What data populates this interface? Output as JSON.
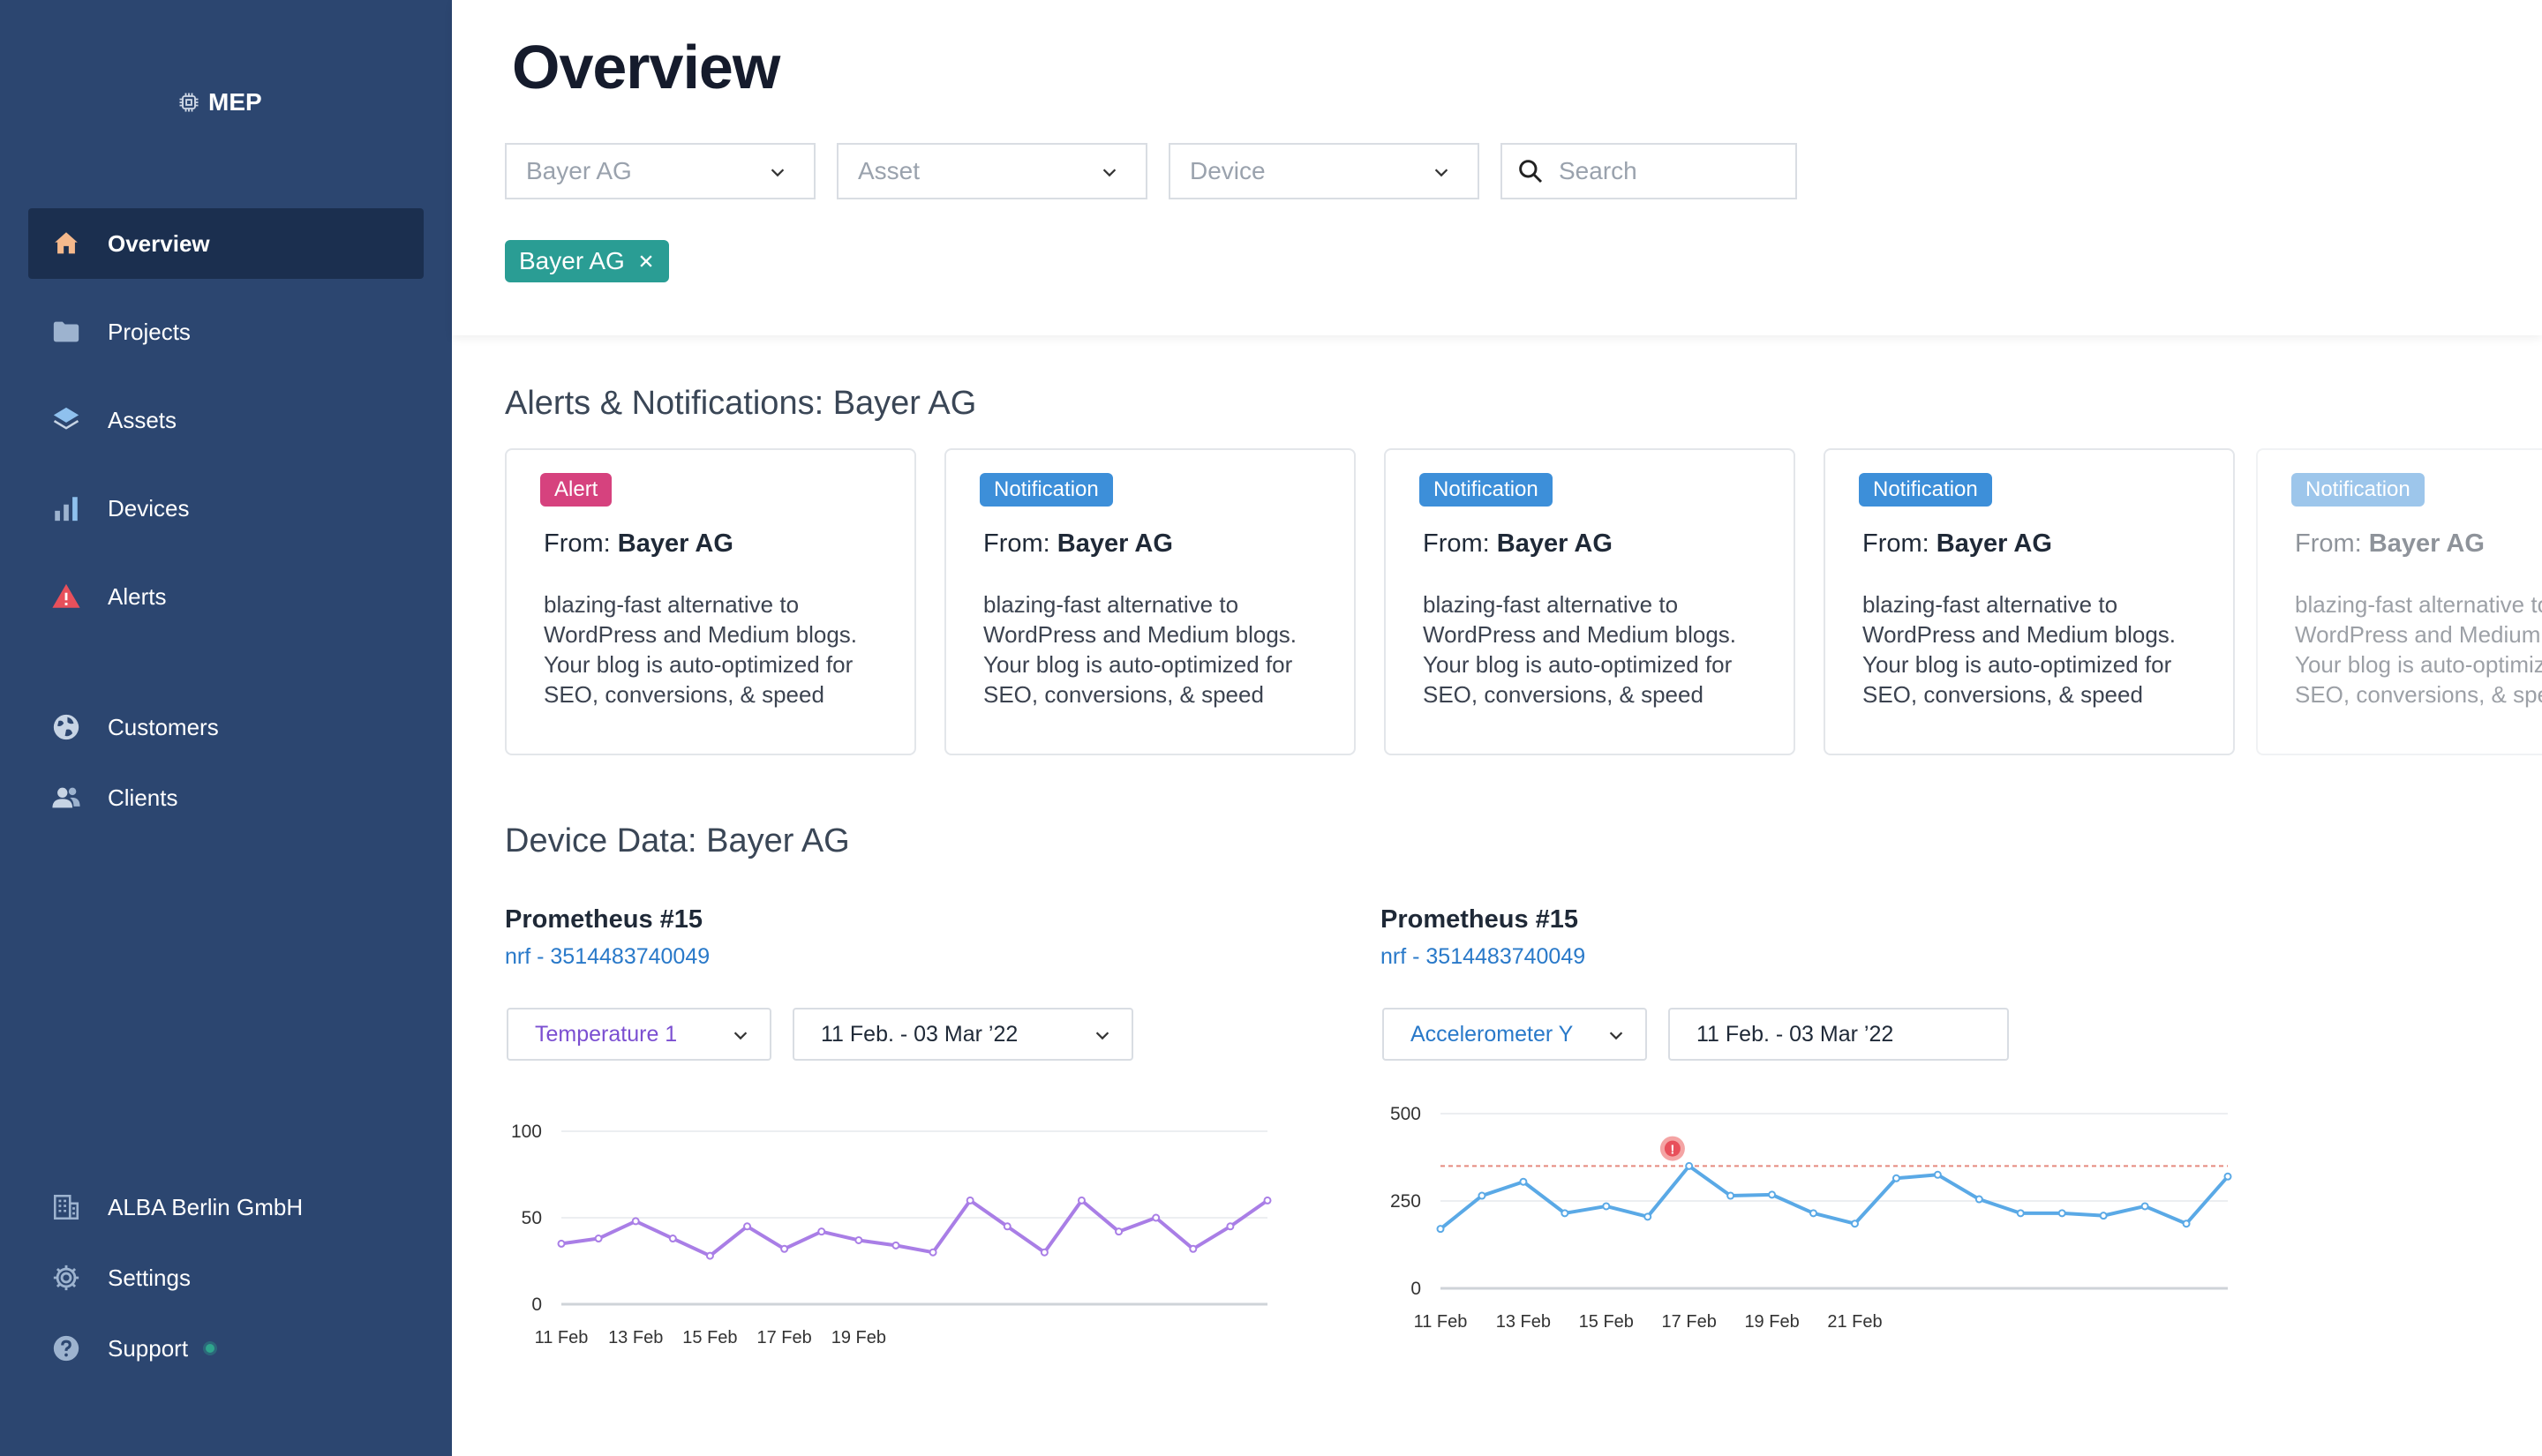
{
  "app": {
    "logo_text": "MEP"
  },
  "sidebar": {
    "items": [
      {
        "label": "Overview",
        "icon": "home-icon"
      },
      {
        "label": "Projects",
        "icon": "folder-icon"
      },
      {
        "label": "Assets",
        "icon": "layers-icon"
      },
      {
        "label": "Devices",
        "icon": "bar-chart-icon"
      },
      {
        "label": "Alerts",
        "icon": "warning-icon"
      },
      {
        "label": "Customers",
        "icon": "globe-icon"
      },
      {
        "label": "Clients",
        "icon": "users-icon"
      }
    ],
    "bottom": [
      {
        "label": "ALBA Berlin GmbH",
        "icon": "building-icon"
      },
      {
        "label": "Settings",
        "icon": "gear-icon"
      },
      {
        "label": "Support",
        "icon": "help-icon"
      }
    ]
  },
  "header": {
    "title": "Overview",
    "filters": [
      {
        "value": "Bayer AG"
      },
      {
        "value": "Asset"
      },
      {
        "value": "Device"
      }
    ],
    "search_placeholder": "Search",
    "active_chip": "Bayer AG"
  },
  "alerts": {
    "title": "Alerts & Notifications: Bayer AG",
    "from_label": "From:",
    "cards": [
      {
        "badge": "Alert",
        "badge_color": "#d6427e",
        "sender": "Bayer AG",
        "text": "blazing-fast alternative to WordPress and Medium blogs. Your blog is auto-optimized for SEO, conversions, & speed"
      },
      {
        "badge": "Notification",
        "badge_color": "#3d8fd9",
        "sender": "Bayer AG",
        "text": "blazing-fast alternative to WordPress and Medium blogs. Your blog is auto-optimized for SEO, conversions, & speed"
      },
      {
        "badge": "Notification",
        "badge_color": "#3d8fd9",
        "sender": "Bayer AG",
        "text": "blazing-fast alternative to WordPress and Medium blogs. Your blog is auto-optimized for SEO, conversions, & speed"
      },
      {
        "badge": "Notification",
        "badge_color": "#3d8fd9",
        "sender": "Bayer AG",
        "text": "blazing-fast alternative to WordPress and Medium blogs. Your blog is auto-optimized for SEO, conversions, & speed"
      },
      {
        "badge": "Notification",
        "badge_color": "#3d8fd9",
        "sender": "Bayer AG",
        "text": "blazing-fast alternative to WordPress and Medium blogs. Your blog is auto-optimized for SEO, conversions, & speed"
      }
    ]
  },
  "device_data": {
    "title": "Device Data: Bayer AG",
    "panels": [
      {
        "device": "Prometheus #15",
        "id": "nrf - 3514483740049",
        "sensor": "Temperature 1",
        "range": "11 Feb. - 03 Mar ’22"
      },
      {
        "device": "Prometheus #15",
        "id": "nrf - 3514483740049",
        "sensor": "Accelerometer Y",
        "range": "11 Feb. - 03 Mar ’22"
      }
    ]
  },
  "chart_data": [
    {
      "type": "line",
      "color": "#a97ee6",
      "yticks": [
        0,
        50,
        100
      ],
      "ylim": [
        0,
        100
      ],
      "xticks": [
        "11 Feb",
        "13 Feb",
        "15 Feb",
        "17 Feb",
        "19 Feb"
      ],
      "x_count": 20,
      "values": [
        35,
        38,
        48,
        38,
        28,
        45,
        32,
        42,
        37,
        34,
        30,
        60,
        45,
        30,
        60,
        42,
        50,
        32,
        45,
        60
      ]
    },
    {
      "type": "line",
      "color": "#5aa9e6",
      "yticks": [
        0,
        250,
        500
      ],
      "ylim": [
        0,
        500
      ],
      "xticks": [
        "11 Feb",
        "13 Feb",
        "15 Feb",
        "17 Feb",
        "19 Feb",
        "21 Feb"
      ],
      "x_count": 20,
      "threshold": 350,
      "threshold_color": "#e58a7f",
      "alert_marker": {
        "x_index": 5.6,
        "value": 400,
        "label": "!"
      },
      "values": [
        170,
        265,
        305,
        215,
        235,
        205,
        350,
        265,
        268,
        215,
        185,
        315,
        325,
        255,
        215,
        215,
        208,
        235,
        185,
        320
      ]
    }
  ]
}
